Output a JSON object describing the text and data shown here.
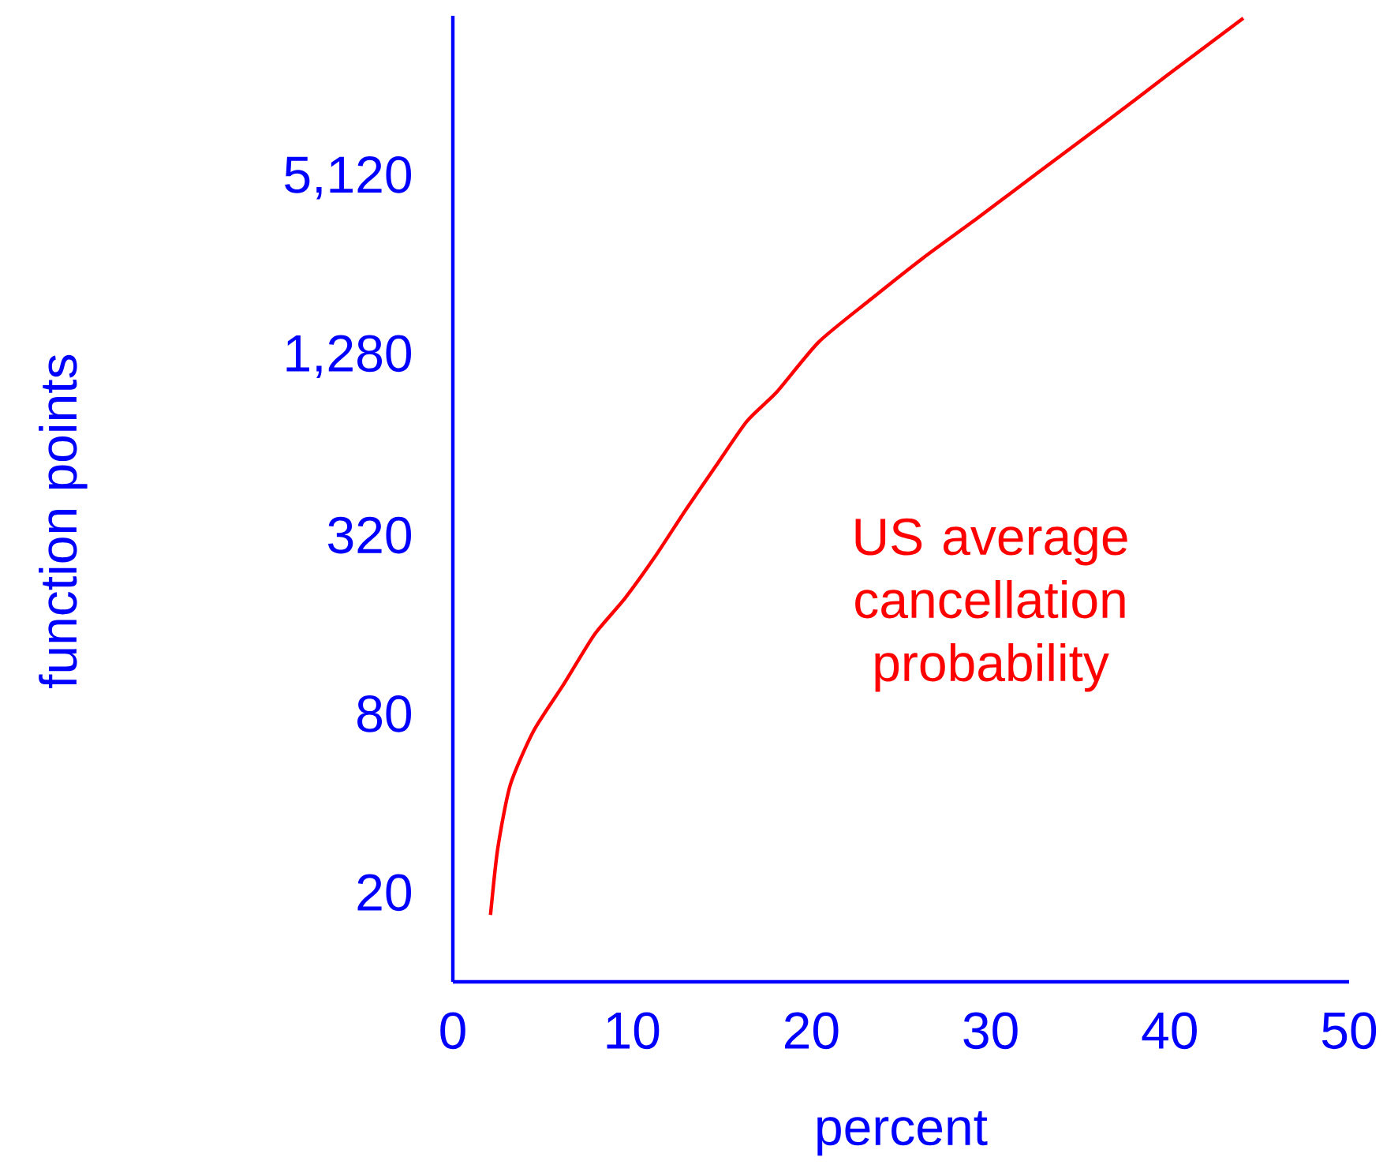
{
  "chart_data": {
    "type": "line",
    "xlabel": "percent",
    "ylabel": "function points",
    "log": "y",
    "xlim": [
      0,
      50
    ],
    "ylim": [
      10,
      18000
    ],
    "xticks": [
      0,
      10,
      20,
      30,
      40,
      50
    ],
    "yticks": [
      20,
      80,
      320,
      {
        "value": 1280,
        "label": "1,280"
      },
      {
        "value": 5120,
        "label": "5,120"
      }
    ],
    "x": [
      2.1,
      2.5,
      3.2,
      4.5,
      6.2,
      7.9,
      9.6,
      11.3,
      13,
      14.7,
      16.4,
      18.1,
      20.4,
      23.2,
      26.2,
      29.3,
      32.8,
      36.4,
      39.9,
      44.1
    ],
    "series": [
      {
        "name": "US average cancellation probability",
        "color": "#ff0000",
        "values": [
          16.8,
          28,
          46,
          70,
          101,
          148,
          196,
          272,
          390,
          550,
          774,
          976,
          1430,
          1970,
          2740,
          3760,
          5420,
          7870,
          11400,
          17660
        ]
      }
    ]
  }
}
